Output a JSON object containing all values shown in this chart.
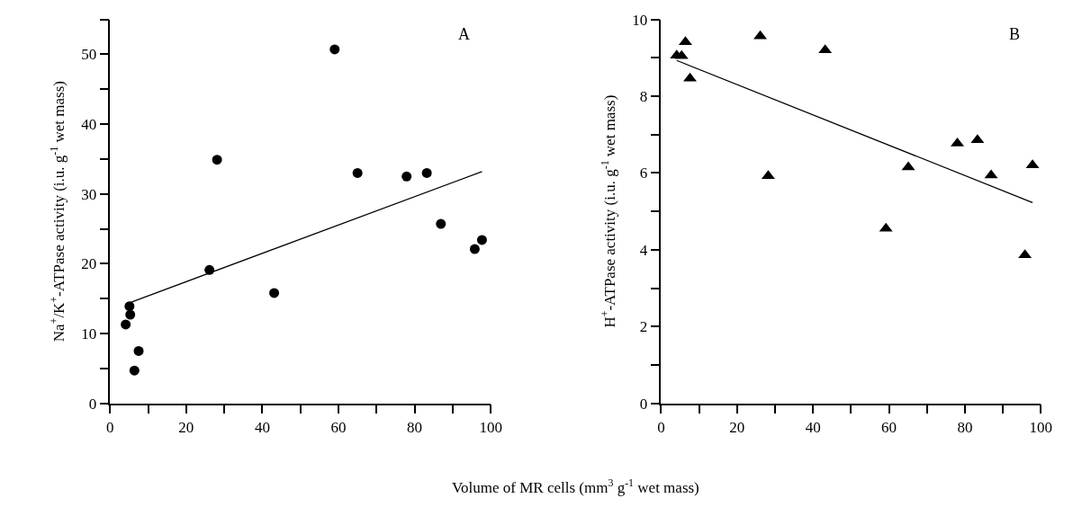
{
  "chart_data": [
    {
      "type": "scatter",
      "title": "A",
      "xlabel": "Volume of MR cells (mm$^{3}$ g$^{-1}$ wet mass)",
      "ylabel": "Na$^{+}$/K$^{+}$-ATPase activity (i.u. g$^{-1}$ wet mass)",
      "xlim": [
        0,
        100
      ],
      "ylim": [
        0,
        55
      ],
      "xticks": [
        0,
        {
          "value": 10,
          "label": null
        },
        20,
        {
          "value": 30,
          "label": null
        },
        40,
        {
          "value": 50,
          "label": null
        },
        60,
        {
          "value": 70,
          "label": null
        },
        80,
        {
          "value": 90,
          "label": null
        },
        100
      ],
      "yticks": [
        0,
        {
          "value": 5,
          "label": null
        },
        10,
        {
          "value": 15,
          "label": null
        },
        20,
        {
          "value": 25,
          "label": null
        },
        30,
        {
          "value": 35,
          "label": null
        },
        40,
        {
          "value": 45,
          "label": null
        },
        50,
        {
          "value": 55,
          "label": null
        }
      ],
      "series": [
        {
          "marker": "circle",
          "color": "#000000",
          "x": [
            4.1,
            5.1,
            5.3,
            7.5,
            6.4,
            26.1,
            28.1,
            43.1,
            59.0,
            65.0,
            77.9,
            83.2,
            86.9,
            95.8,
            97.7
          ],
          "values": [
            11.3,
            13.9,
            12.7,
            7.5,
            4.7,
            19.1,
            34.9,
            15.8,
            50.7,
            33.0,
            32.5,
            33.0,
            25.7,
            22.1,
            23.4
          ]
        },
        {
          "type": "line",
          "line_style": "solid",
          "color": "#000000",
          "x": [
            5.1,
            97.7
          ],
          "values": [
            14.4,
            33.2
          ]
        }
      ]
    },
    {
      "type": "scatter",
      "title": "B",
      "ylabel": "H$^{+}$-ATPase activity (i.u. g$^{-1}$ wet mass)",
      "xlim": [
        0,
        100
      ],
      "ylim": [
        0,
        10
      ],
      "xticks": [
        0,
        {
          "value": 10,
          "label": null
        },
        20,
        {
          "value": 30,
          "label": null
        },
        40,
        {
          "value": 50,
          "label": null
        },
        60,
        {
          "value": 70,
          "label": null
        },
        80,
        {
          "value": 90,
          "label": null
        },
        100
      ],
      "yticks": [
        0,
        {
          "value": 1,
          "label": null
        },
        2,
        {
          "value": 3,
          "label": null
        },
        4,
        {
          "value": 5,
          "label": null
        },
        6,
        {
          "value": 7,
          "label": null
        },
        8,
        {
          "value": 9,
          "label": null
        },
        10
      ],
      "series": [
        {
          "marker": "triangle",
          "color": "#000000",
          "x": [
            4.1,
            5.4,
            6.4,
            7.6,
            26.1,
            28.2,
            43.2,
            59.2,
            65.1,
            78.0,
            83.3,
            86.9,
            95.8,
            97.8
          ],
          "values": [
            9.06,
            9.05,
            9.41,
            8.46,
            9.56,
            5.92,
            9.2,
            4.55,
            6.15,
            6.77,
            6.86,
            5.94,
            3.86,
            6.2
          ]
        },
        {
          "type": "line",
          "line_style": "solid",
          "color": "#000000",
          "x": [
            4.1,
            97.8
          ],
          "values": [
            8.93,
            5.23
          ]
        }
      ]
    }
  ]
}
